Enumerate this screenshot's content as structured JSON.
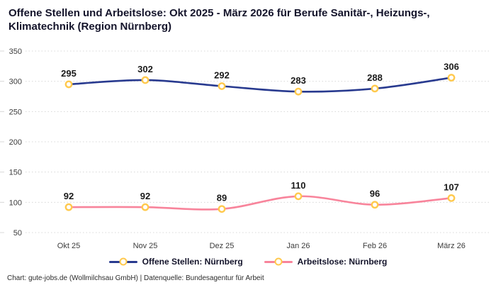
{
  "title": "Offene Stellen und Arbeitslose: Okt 2025 - März 2026 für Berufe Sanitär-, Heizungs-, Klimatechnik (Region Nürnberg)",
  "footer": "Chart: gute-jobs.de (Wollmilchsau GmbH) | Datenquelle: Bundesagentur für Arbeit",
  "chart_data": {
    "type": "line",
    "categories": [
      "Okt 25",
      "Nov 25",
      "Dez 25",
      "Jan 26",
      "Feb 26",
      "März 26"
    ],
    "series": [
      {
        "name": "Offene Stellen: Nürnberg",
        "values": [
          295,
          302,
          292,
          283,
          288,
          306
        ],
        "color": "#283A8F"
      },
      {
        "name": "Arbeitslose: Nürnberg",
        "values": [
          92,
          92,
          89,
          110,
          96,
          107
        ],
        "color": "#F8849B"
      }
    ],
    "marker": {
      "fill": "#FFFFFF",
      "stroke": "#FFC94D"
    },
    "ylim": [
      50,
      350
    ],
    "ytick_step": 50,
    "yticks": [
      50,
      100,
      150,
      200,
      250,
      300,
      350
    ],
    "grid": true,
    "grid_style": "dotted",
    "legend_position": "bottom",
    "label_color": "#1a1a1a",
    "grid_color": "#d8d8d8",
    "axis_text_color": "#3c3c3c"
  }
}
